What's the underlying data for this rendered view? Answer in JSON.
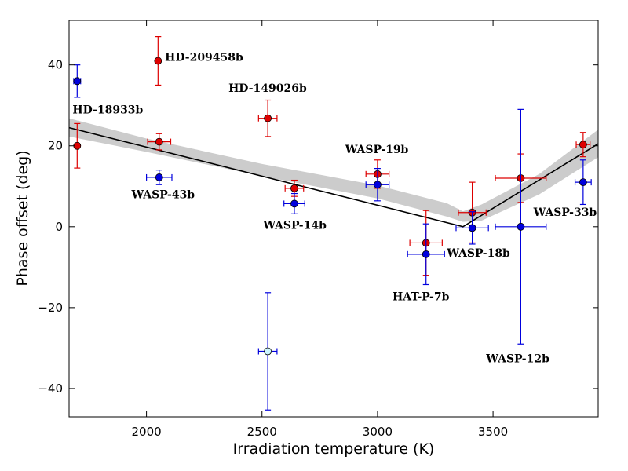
{
  "chart_data": {
    "type": "scatter",
    "title": "",
    "xlabel": "Irradiation temperature (K)",
    "ylabel": "Phase offset (deg)",
    "xlim": [
      1665,
      3955
    ],
    "ylim": [
      -47,
      51
    ],
    "xticks": [
      2000,
      2500,
      3000,
      3500
    ],
    "yticks": [
      -40,
      -20,
      0,
      20,
      40
    ],
    "grid": false,
    "colors": {
      "red": "#dd0000",
      "blue": "#0000dd",
      "cyan": "#ccf5ff",
      "model": "#000000",
      "band": "#cccccc"
    },
    "model": {
      "name": "fit",
      "x": [
        1665,
        3370,
        3955
      ],
      "y": [
        24.5,
        0,
        20.5
      ],
      "band_x": [
        1665,
        2000,
        2500,
        3000,
        3300,
        3370,
        3450,
        3700,
        3955
      ],
      "band_lower": [
        22.3,
        18.5,
        12.5,
        7.0,
        2.5,
        1.2,
        1.5,
        8.0,
        17.2
      ],
      "band_upper": [
        26.8,
        21.8,
        15.5,
        10.2,
        5.8,
        3.8,
        5.5,
        13.0,
        24.0
      ]
    },
    "series": [
      {
        "name": "red",
        "color": "red",
        "points": [
          {
            "x": 1700,
            "y": 20,
            "xerr": 0,
            "yerr": 5.5
          },
          {
            "x": 2050,
            "y": 41,
            "xerr": 0,
            "yerr": 6
          },
          {
            "x": 2055,
            "y": 21,
            "xerr": 50,
            "yerr": 2
          },
          {
            "x": 2525,
            "y": 26.8,
            "xerr": 40,
            "yerr": 4.5
          },
          {
            "x": 2640,
            "y": 9.5,
            "xerr": 40,
            "yerr": 2
          },
          {
            "x": 3000,
            "y": 13,
            "xerr": 50,
            "yerr": 3.5
          },
          {
            "x": 3210,
            "y": -4,
            "xerr": 70,
            "yerr": 8
          },
          {
            "x": 3410,
            "y": 3.5,
            "xerr": 60,
            "yerr": 7.5
          },
          {
            "x": 3620,
            "y": 12,
            "xerr": 110,
            "yerr": 6
          },
          {
            "x": 3890,
            "y": 20.3,
            "xerr": 30,
            "yerr": 3
          }
        ]
      },
      {
        "name": "blue",
        "color": "blue",
        "points": [
          {
            "x": 1700,
            "y": 36,
            "xerr": 15,
            "yerr": 4
          },
          {
            "x": 2055,
            "y": 12.2,
            "xerr": 55,
            "yerr": 1.8
          },
          {
            "x": 2640,
            "y": 5.7,
            "xerr": 45,
            "yerr": 2.5
          },
          {
            "x": 3000,
            "y": 10.4,
            "xerr": 50,
            "yerr": 4
          },
          {
            "x": 3210,
            "y": -6.8,
            "xerr": 80,
            "yerr": 7.5
          },
          {
            "x": 3410,
            "y": -0.3,
            "xerr": 70,
            "yerr": 4
          },
          {
            "x": 3620,
            "y": 0,
            "xerr": 110,
            "yerr": 29
          },
          {
            "x": 3890,
            "y": 11,
            "xerr": 35,
            "yerr": 5.5
          }
        ]
      },
      {
        "name": "cyan",
        "color": "cyan",
        "points": [
          {
            "x": 2525,
            "y": -30.8,
            "xerr": 40,
            "yerr": 14.5
          }
        ]
      }
    ],
    "annotations": [
      {
        "text": "HD-18933b",
        "x": 1680,
        "y": 28,
        "anchor": "start"
      },
      {
        "text": "HD-209458b",
        "x": 2080,
        "y": 41,
        "anchor": "start"
      },
      {
        "text": "HD-149026b",
        "x": 2355,
        "y": 33.3,
        "anchor": "start"
      },
      {
        "text": "WASP-43b",
        "x": 1935,
        "y": 7,
        "anchor": "start"
      },
      {
        "text": "WASP-19b",
        "x": 2860,
        "y": 18.2,
        "anchor": "start"
      },
      {
        "text": "WASP-14b",
        "x": 2505,
        "y": -0.5,
        "anchor": "start"
      },
      {
        "text": "WASP-18b",
        "x": 3300,
        "y": -7.4,
        "anchor": "start"
      },
      {
        "text": "HAT-P-7b",
        "x": 3065,
        "y": -18.2,
        "anchor": "start"
      },
      {
        "text": "WASP-33b",
        "x": 3675,
        "y": 2.7,
        "anchor": "start"
      },
      {
        "text": "WASP-12b",
        "x": 3470,
        "y": -33.5,
        "anchor": "start"
      }
    ]
  }
}
